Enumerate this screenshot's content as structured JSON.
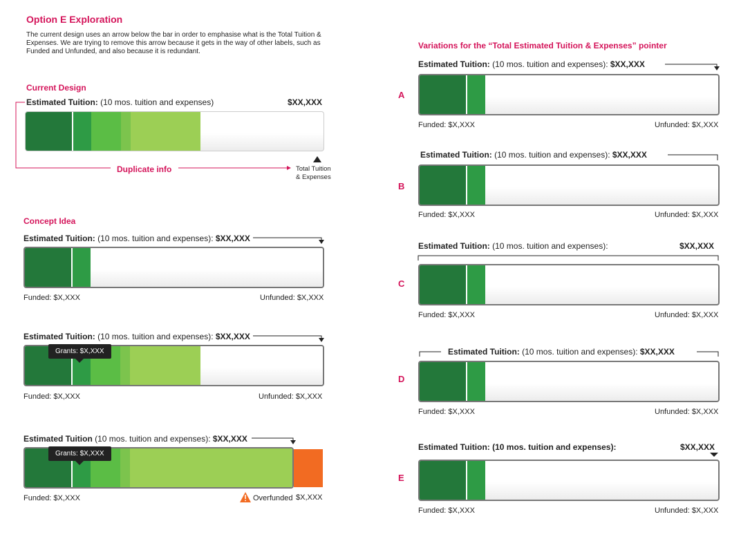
{
  "header": {
    "title": "Option E Exploration",
    "description": "The current design uses an arrow below the bar in order to emphasise what is the Total Tuition & Expenses. We are trying to remove this arrow because it gets in the way of other labels, such as Funded and Unfunded, and also because it is redundant."
  },
  "current": {
    "heading": "Current Design",
    "label_bold": "Estimated Tuition:",
    "label_rest": " (10 mos. tuition and expenses)",
    "amount": "$XX,XXX",
    "duplicate": "Duplicate info",
    "total_line1": "Total Tuition",
    "total_line2": "& Expenses"
  },
  "concept": {
    "heading": "Concept Idea",
    "label_bold": "Estimated Tuition:",
    "label_rest": " (10 mos. tuition and expenses): ",
    "label_rest2": " (10 mos. tuition and expenses): ",
    "label_bold3": "Estimated Tuition",
    "label_rest3": " (10 mos. tuition and expenses): ",
    "amount": "$XX,XXX",
    "funded": "Funded: $X,XXX",
    "unfunded": "Unfunded: $X,XXX",
    "grants": "Grants: $X,XXX",
    "overfunded": "Overfunded",
    "overfunded_amount": "$X,XXX"
  },
  "variations": {
    "heading": "Variations for the “Total Estimated Tuition & Expenses” pointer",
    "label_bold": "Estimated Tuition:",
    "label_rest": " (10 mos. tuition and expenses): ",
    "label_rest_c": " (10 mos. tuition and expenses):",
    "label_e": "Estimated Tuition: (10 mos. tuition and expenses):",
    "amount": "$XX,XXX",
    "funded": "Funded: $X,XXX",
    "unfunded": "Unfunded: $X,XXX",
    "letters": [
      "A",
      "B",
      "C",
      "D",
      "E"
    ]
  },
  "colors": {
    "accent": "#d4145a",
    "green_dark": "#23783a",
    "green_mid": "#2e9b45",
    "green_light": "#5bbd45",
    "green_lighter": "#97cd52",
    "overfunded": "#f26b22"
  }
}
